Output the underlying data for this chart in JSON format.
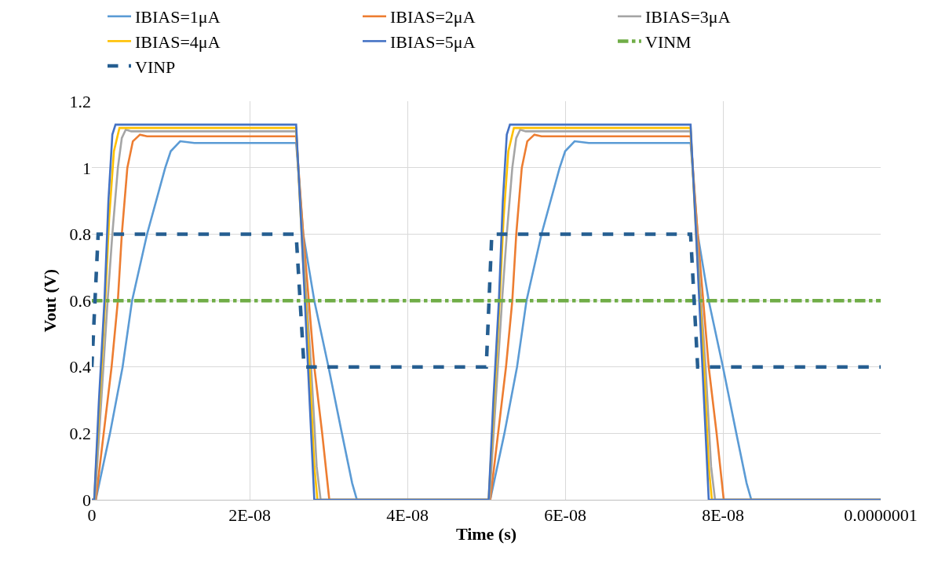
{
  "chart_data": {
    "type": "line",
    "xlabel": "Time (s)",
    "ylabel": "Vout (V)",
    "xlim": [
      0,
      1e-07
    ],
    "ylim": [
      0,
      1.2
    ],
    "xticks": [
      0,
      {
        "value": 2e-08,
        "label": "2E-08"
      },
      {
        "value": 4e-08,
        "label": "4E-08"
      },
      {
        "value": 6e-08,
        "label": "6E-08"
      },
      {
        "value": 8e-08,
        "label": "8E-08"
      },
      {
        "value": 1e-07,
        "label": "0.0000001"
      }
    ],
    "yticks": [
      0,
      0.2,
      0.4,
      0.6,
      0.8,
      1,
      1.2
    ],
    "grid": true,
    "legend": "top",
    "marker": "none",
    "series": [
      {
        "name": "IBIAS=1μA",
        "color": "#5b9bd5",
        "line_style": "solid",
        "x": [
          0,
          5e-10,
          2.3e-09,
          3.9e-09,
          5.1e-09,
          7e-09,
          9.3e-09,
          1e-08,
          1.12e-08,
          1.3e-08,
          2.59e-08,
          2.68e-08,
          2.75e-08,
          2.82e-08,
          3e-08,
          3.17e-08,
          3.3e-08,
          3.36e-08,
          5.05e-08,
          5.23e-08,
          5.39e-08,
          5.51e-08,
          5.7e-08,
          5.93e-08,
          6e-08,
          6.12e-08,
          6.3e-08,
          7.59e-08,
          7.68e-08,
          7.75e-08,
          7.82e-08,
          8e-08,
          8.17e-08,
          8.3e-08,
          8.36e-08,
          1e-07
        ],
        "values": [
          0,
          0,
          0.2,
          0.4,
          0.6,
          0.8,
          1.0,
          1.05,
          1.08,
          1.075,
          1.075,
          0.8,
          0.7,
          0.6,
          0.4,
          0.2,
          0.05,
          0,
          0,
          0.2,
          0.4,
          0.6,
          0.8,
          1.0,
          1.05,
          1.08,
          1.075,
          1.075,
          0.8,
          0.7,
          0.6,
          0.4,
          0.2,
          0.05,
          0,
          0
        ]
      },
      {
        "name": "IBIAS=2μA",
        "color": "#ed7d31",
        "line_style": "solid",
        "x": [
          0,
          5e-10,
          1.5e-09,
          2.5e-09,
          3.3e-09,
          3.8e-09,
          4.5e-09,
          5.2e-09,
          6.1e-09,
          7e-09,
          2.59e-08,
          2.68e-08,
          2.75e-08,
          2.82e-08,
          2.92e-08,
          3.01e-08,
          5.05e-08,
          5.15e-08,
          5.25e-08,
          5.33e-08,
          5.38e-08,
          5.45e-08,
          5.52e-08,
          5.61e-08,
          5.7e-08,
          7.59e-08,
          7.68e-08,
          7.75e-08,
          7.82e-08,
          7.92e-08,
          8.01e-08,
          1e-07
        ],
        "values": [
          0,
          0,
          0.2,
          0.4,
          0.6,
          0.8,
          1.0,
          1.08,
          1.1,
          1.095,
          1.095,
          0.8,
          0.6,
          0.4,
          0.2,
          0,
          0,
          0.2,
          0.4,
          0.6,
          0.8,
          1.0,
          1.08,
          1.1,
          1.095,
          1.095,
          0.8,
          0.6,
          0.4,
          0.2,
          0,
          0
        ]
      },
      {
        "name": "IBIAS=3μA",
        "color": "#a5a5a5",
        "line_style": "solid",
        "x": [
          0,
          4e-10,
          1.2e-09,
          2e-09,
          2.6e-09,
          3.3e-09,
          3.8e-09,
          4.3e-09,
          5e-09,
          2.59e-08,
          2.68e-08,
          2.78e-08,
          2.85e-08,
          2.9e-08,
          5.04e-08,
          5.12e-08,
          5.2e-08,
          5.26e-08,
          5.33e-08,
          5.38e-08,
          5.43e-08,
          5.5e-08,
          7.59e-08,
          7.68e-08,
          7.78e-08,
          7.85e-08,
          7.9e-08,
          1e-07
        ],
        "values": [
          0,
          0,
          0.3,
          0.6,
          0.8,
          1.0,
          1.09,
          1.115,
          1.11,
          1.11,
          0.75,
          0.4,
          0.1,
          0,
          0,
          0.3,
          0.6,
          0.8,
          1.0,
          1.09,
          1.115,
          1.11,
          1.11,
          0.75,
          0.4,
          0.1,
          0,
          0
        ]
      },
      {
        "name": "IBIAS=4μA",
        "color": "#ffc000",
        "line_style": "solid",
        "x": [
          0,
          3e-10,
          1e-09,
          1.7e-09,
          2.2e-09,
          2.8e-09,
          3.5e-09,
          2.59e-08,
          2.67e-08,
          2.76e-08,
          2.82e-08,
          2.86e-08,
          5.03e-08,
          5.1e-08,
          5.17e-08,
          5.22e-08,
          5.28e-08,
          5.35e-08,
          7.59e-08,
          7.67e-08,
          7.76e-08,
          7.82e-08,
          7.86e-08,
          1e-07
        ],
        "values": [
          0,
          0,
          0.3,
          0.6,
          0.85,
          1.05,
          1.12,
          1.12,
          0.75,
          0.4,
          0.1,
          0,
          0,
          0.3,
          0.6,
          0.85,
          1.05,
          1.12,
          1.12,
          0.75,
          0.4,
          0.1,
          0,
          0
        ]
      },
      {
        "name": "IBIAS=5μA",
        "color": "#4472c4",
        "line_style": "solid",
        "x": [
          0,
          3e-10,
          9e-10,
          1.6e-09,
          2.1e-09,
          2.6e-09,
          3e-09,
          2.59e-08,
          2.66e-08,
          2.74e-08,
          2.82e-08,
          5.03e-08,
          5.09e-08,
          5.16e-08,
          5.21e-08,
          5.26e-08,
          5.3e-08,
          7.59e-08,
          7.66e-08,
          7.74e-08,
          7.82e-08,
          1e-07
        ],
        "values": [
          0,
          0,
          0.3,
          0.6,
          0.9,
          1.1,
          1.13,
          1.13,
          0.8,
          0.4,
          0,
          0,
          0.3,
          0.6,
          0.9,
          1.1,
          1.13,
          1.13,
          0.8,
          0.4,
          0,
          0
        ]
      },
      {
        "name": "VINM",
        "color": "#70ad47",
        "line_style": "dashdot",
        "x": [
          0,
          1e-07
        ],
        "values": [
          0.6,
          0.6
        ]
      },
      {
        "name": "VINP",
        "color": "#255e91",
        "line_style": "dashed",
        "x": [
          0,
          8e-10,
          2.59e-08,
          2.69e-08,
          5e-08,
          5.07e-08,
          7.59e-08,
          7.68e-08,
          1e-07
        ],
        "values": [
          0.4,
          0.8,
          0.8,
          0.4,
          0.4,
          0.8,
          0.8,
          0.4,
          0.4
        ]
      }
    ]
  }
}
